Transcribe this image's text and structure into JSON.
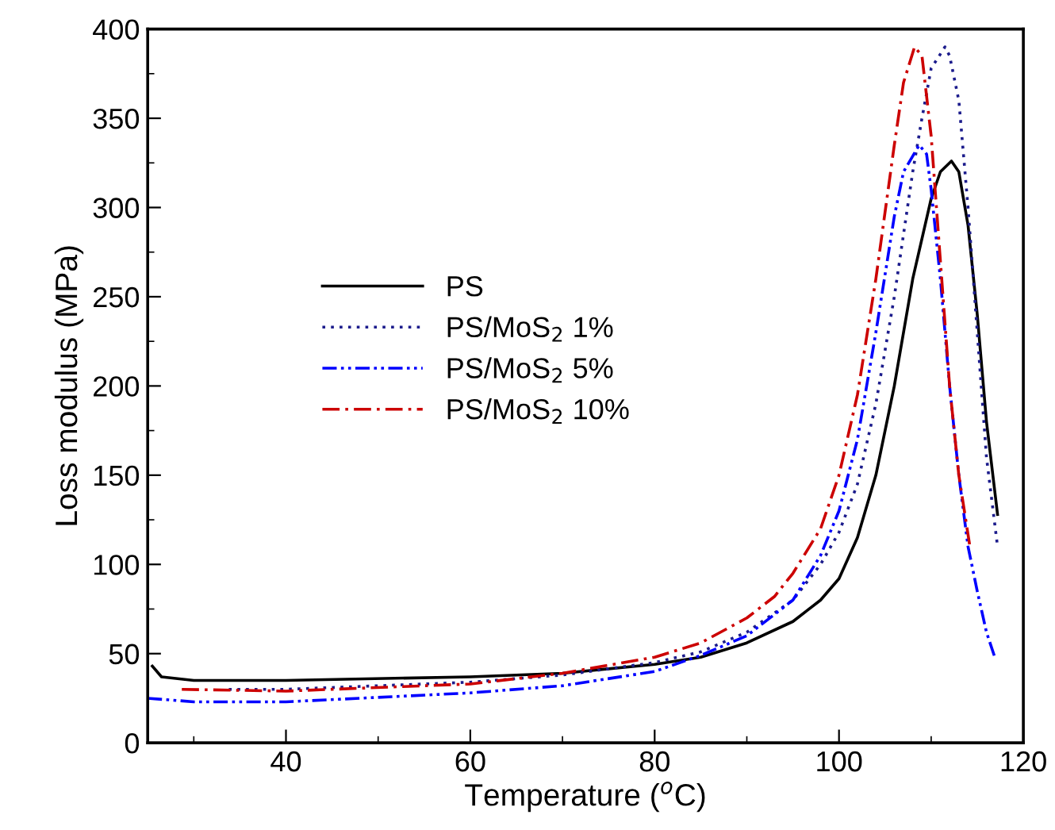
{
  "chart_data": {
    "type": "line",
    "xlabel": "Temperature ($^{o}$C)",
    "ylabel": "Loss modulus (MPa)",
    "xlim": [
      25,
      120
    ],
    "xticks": [
      40,
      60,
      80,
      100,
      120
    ],
    "ylim": [
      0,
      400
    ],
    "yticks": [
      0,
      50,
      100,
      150,
      200,
      250,
      300,
      350,
      400
    ],
    "grid": false,
    "legend": "center",
    "marker": "none",
    "series": [
      {
        "name": "PS",
        "color": "#000000",
        "line_style": "solid",
        "x": [
          25.5,
          26.5,
          30,
          40,
          60,
          70,
          80,
          85,
          90,
          95,
          98,
          100,
          102,
          104,
          106,
          108,
          110,
          111,
          112.2,
          113,
          114,
          115,
          116,
          117.2
        ],
        "values": [
          43,
          37,
          35,
          35,
          37,
          39,
          44,
          48,
          56,
          68,
          80,
          92,
          115,
          150,
          200,
          260,
          305,
          320,
          326,
          320,
          290,
          240,
          180,
          128
        ]
      },
      {
        "name": "PS/MoS$_{2}$ 1%",
        "color": "#1c1c8c",
        "line_style": "dotted",
        "x": [
          33.8,
          40,
          60,
          70,
          80,
          85,
          90,
          95,
          98,
          100,
          102,
          104,
          106,
          108,
          109,
          110,
          111.5,
          112,
          113,
          114,
          115,
          116,
          117.2
        ],
        "values": [
          30,
          30,
          34,
          38,
          45,
          51,
          62,
          80,
          100,
          118,
          145,
          190,
          250,
          320,
          350,
          378,
          390,
          385,
          360,
          300,
          230,
          160,
          110
        ]
      },
      {
        "name": "PS/MoS$_{2}$ 5%",
        "color": "#0000ff",
        "line_style": "dashdotdot",
        "x": [
          25,
          30,
          40,
          60,
          70,
          80,
          85,
          90,
          95,
          98,
          100,
          102,
          104,
          106,
          107,
          108.7,
          109.5,
          110,
          111,
          112,
          113,
          114,
          115,
          116,
          116.9
        ],
        "values": [
          25,
          23,
          23,
          28,
          32,
          40,
          49,
          60,
          80,
          105,
          130,
          170,
          230,
          295,
          320,
          335,
          330,
          310,
          260,
          200,
          150,
          110,
          85,
          62,
          48
        ]
      },
      {
        "name": "PS/MoS$_{2}$ 10%",
        "color": "#cc0000",
        "line_style": "dashdot",
        "x": [
          28.7,
          40,
          60,
          70,
          80,
          85,
          90,
          93,
          95,
          98,
          100,
          102,
          104,
          106,
          107,
          108.2,
          109,
          110,
          111,
          112,
          113,
          114.2
        ],
        "values": [
          30,
          29,
          33,
          39,
          48,
          56,
          70,
          82,
          95,
          120,
          150,
          195,
          260,
          335,
          370,
          390,
          385,
          340,
          270,
          200,
          150,
          110
        ]
      }
    ]
  }
}
